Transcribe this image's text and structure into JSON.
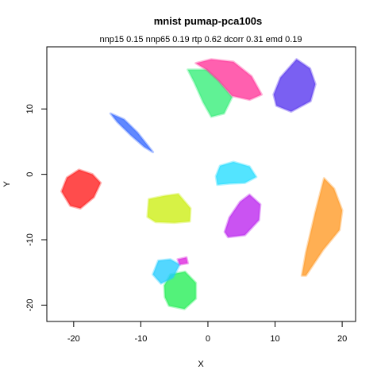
{
  "chart_data": {
    "type": "scatter",
    "title": "mnist pumap-pca100s",
    "subtitle": "nnp15 0.15 nnp65 0.19 rtp 0.62 dcorr 0.31 emd 0.19",
    "xlabel": "X",
    "ylabel": "Y",
    "xlim": [
      -24,
      22
    ],
    "ylim": [
      -22.5,
      19.5
    ],
    "x_ticks": [
      -20,
      -10,
      0,
      10,
      20
    ],
    "y_ticks": [
      -20,
      -10,
      0,
      10
    ],
    "grid": false,
    "legend": "none",
    "clusters": [
      {
        "color": "#3366ff",
        "points": [
          [
            -14.5,
            9.3
          ],
          [
            -12.5,
            8.4
          ],
          [
            -10.5,
            6.4
          ],
          [
            -8.8,
            4.2
          ],
          [
            -8.2,
            3.4
          ],
          [
            -9.5,
            4.2
          ],
          [
            -11.5,
            6.0
          ],
          [
            -13.5,
            8.0
          ]
        ]
      },
      {
        "color": "#ff1a1a",
        "points": [
          [
            -21.8,
            -2.6
          ],
          [
            -21.0,
            -0.5
          ],
          [
            -19.2,
            0.7
          ],
          [
            -17.2,
            0.0
          ],
          [
            -16.0,
            -1.3
          ],
          [
            -17.0,
            -3.5
          ],
          [
            -19.0,
            -5.2
          ],
          [
            -20.5,
            -4.8
          ]
        ]
      },
      {
        "color": "#ccee11",
        "points": [
          [
            -9.0,
            -6.5
          ],
          [
            -8.8,
            -3.8
          ],
          [
            -6.5,
            -3.3
          ],
          [
            -4.4,
            -3.0
          ],
          [
            -2.6,
            -5.2
          ],
          [
            -2.7,
            -7.2
          ],
          [
            -5.0,
            -7.4
          ],
          [
            -7.8,
            -7.3
          ]
        ]
      },
      {
        "color": "#22ee55",
        "points": [
          [
            -6.5,
            -17.0
          ],
          [
            -5.6,
            -15.3
          ],
          [
            -3.4,
            -14.9
          ],
          [
            -1.8,
            -16.6
          ],
          [
            -1.8,
            -19.0
          ],
          [
            -3.5,
            -20.6
          ],
          [
            -5.8,
            -20.1
          ],
          [
            -6.4,
            -18.8
          ]
        ]
      },
      {
        "color": "#22ccff",
        "points": [
          [
            -8.2,
            -15.3
          ],
          [
            -7.4,
            -13.2
          ],
          [
            -5.6,
            -13.0
          ],
          [
            -4.2,
            -13.8
          ],
          [
            -5.2,
            -15.8
          ],
          [
            -7.0,
            -16.7
          ]
        ]
      },
      {
        "color": "#dd22dd",
        "points": [
          [
            -4.5,
            -13.0
          ],
          [
            -3.2,
            -12.7
          ],
          [
            -3.0,
            -13.6
          ],
          [
            -4.2,
            -13.8
          ]
        ]
      },
      {
        "color": "#22ddff",
        "points": [
          [
            1.2,
            -0.3
          ],
          [
            1.8,
            1.3
          ],
          [
            3.8,
            1.9
          ],
          [
            6.2,
            1.2
          ],
          [
            7.2,
            -0.4
          ],
          [
            5.5,
            -1.3
          ],
          [
            3.2,
            -1.4
          ],
          [
            1.4,
            -1.6
          ]
        ]
      },
      {
        "color": "#bb22ee",
        "points": [
          [
            2.5,
            -8.8
          ],
          [
            3.2,
            -6.6
          ],
          [
            4.8,
            -4.2
          ],
          [
            6.2,
            -3.1
          ],
          [
            7.8,
            -4.6
          ],
          [
            7.6,
            -7.0
          ],
          [
            5.5,
            -9.3
          ],
          [
            3.0,
            -9.6
          ]
        ]
      },
      {
        "color": "#ff9922",
        "points": [
          [
            14.0,
            -15.5
          ],
          [
            14.6,
            -12.0
          ],
          [
            16.0,
            -5.8
          ],
          [
            17.3,
            -0.6
          ],
          [
            18.8,
            -2.2
          ],
          [
            20.0,
            -5.5
          ],
          [
            19.6,
            -8.5
          ],
          [
            17.2,
            -11.5
          ],
          [
            14.6,
            -15.5
          ]
        ]
      },
      {
        "color": "#33ee77",
        "points": [
          [
            -3.0,
            16.0
          ],
          [
            -2.0,
            14.0
          ],
          [
            -0.7,
            11.0
          ],
          [
            0.5,
            8.8
          ],
          [
            2.4,
            9.3
          ],
          [
            3.6,
            11.8
          ],
          [
            1.6,
            14.3
          ],
          [
            -0.2,
            16.0
          ]
        ]
      },
      {
        "color": "#ff3399",
        "points": [
          [
            -1.8,
            17.0
          ],
          [
            0.5,
            17.6
          ],
          [
            3.8,
            17.2
          ],
          [
            6.5,
            15.0
          ],
          [
            8.0,
            12.2
          ],
          [
            6.2,
            11.4
          ],
          [
            3.6,
            12.0
          ],
          [
            1.6,
            14.3
          ],
          [
            -0.2,
            16.0
          ]
        ]
      },
      {
        "color": "#5533ee",
        "points": [
          [
            9.8,
            12.2
          ],
          [
            10.8,
            14.8
          ],
          [
            13.2,
            17.6
          ],
          [
            15.2,
            16.2
          ],
          [
            16.0,
            13.8
          ],
          [
            15.3,
            11.2
          ],
          [
            12.4,
            9.6
          ],
          [
            10.2,
            10.5
          ]
        ]
      }
    ]
  }
}
